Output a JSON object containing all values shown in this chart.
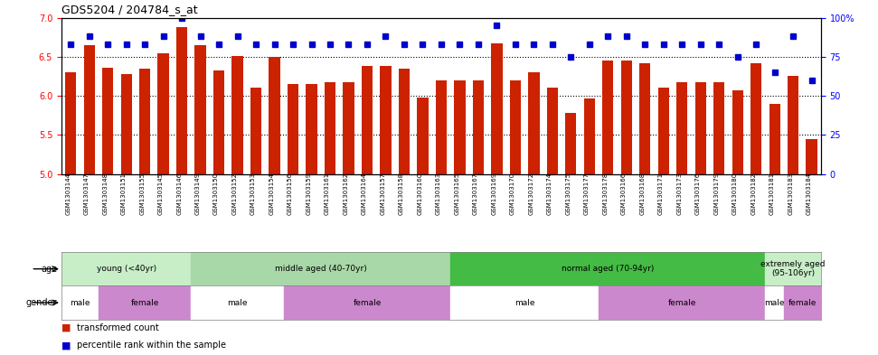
{
  "title": "GDS5204 / 204784_s_at",
  "samples": [
    "GSM1303144",
    "GSM1303147",
    "GSM1303148",
    "GSM1303151",
    "GSM1303155",
    "GSM1303145",
    "GSM1303146",
    "GSM1303149",
    "GSM1303150",
    "GSM1303152",
    "GSM1303153",
    "GSM1303154",
    "GSM1303156",
    "GSM1303159",
    "GSM1303161",
    "GSM1303162",
    "GSM1303164",
    "GSM1303157",
    "GSM1303158",
    "GSM1303160",
    "GSM1303163",
    "GSM1303165",
    "GSM1303167",
    "GSM1303169",
    "GSM1303170",
    "GSM1303172",
    "GSM1303174",
    "GSM1303175",
    "GSM1303177",
    "GSM1303178",
    "GSM1303166",
    "GSM1303168",
    "GSM1303171",
    "GSM1303173",
    "GSM1303176",
    "GSM1303179",
    "GSM1303180",
    "GSM1303182",
    "GSM1303181",
    "GSM1303183",
    "GSM1303184"
  ],
  "bar_values": [
    6.3,
    6.65,
    6.36,
    6.28,
    6.35,
    6.55,
    6.88,
    6.65,
    6.33,
    6.51,
    6.11,
    6.5,
    6.15,
    6.15,
    6.17,
    6.17,
    6.38,
    6.38,
    6.35,
    5.98,
    6.2,
    6.2,
    6.2,
    6.67,
    6.2,
    6.3,
    6.1,
    5.78,
    5.97,
    6.45,
    6.45,
    6.42,
    6.1,
    6.18,
    6.18,
    6.18,
    6.07,
    6.42,
    5.9,
    6.25,
    5.45
  ],
  "blue_values": [
    83,
    88,
    83,
    83,
    83,
    88,
    100,
    88,
    83,
    88,
    83,
    83,
    83,
    83,
    83,
    83,
    83,
    88,
    83,
    83,
    83,
    83,
    83,
    95,
    83,
    83,
    83,
    75,
    83,
    88,
    88,
    83,
    83,
    83,
    83,
    83,
    75,
    83,
    65,
    88,
    60
  ],
  "ylim_left": [
    5.0,
    7.0
  ],
  "ylim_right": [
    0,
    100
  ],
  "yticks_left": [
    5.0,
    5.5,
    6.0,
    6.5,
    7.0
  ],
  "yticks_right": [
    0,
    25,
    50,
    75,
    100
  ],
  "bar_color": "#CC2200",
  "dot_color": "#0000CC",
  "age_groups": [
    {
      "label": "young (<40yr)",
      "start": 0,
      "end": 7,
      "color": "#C8EEC8"
    },
    {
      "label": "middle aged (40-70yr)",
      "start": 7,
      "end": 21,
      "color": "#A8D8A8"
    },
    {
      "label": "normal aged (70-94yr)",
      "start": 21,
      "end": 38,
      "color": "#44BB44"
    },
    {
      "label": "extremely aged\n(95-106yr)",
      "start": 38,
      "end": 41,
      "color": "#C8EEC8"
    }
  ],
  "gender_groups": [
    {
      "label": "male",
      "start": 0,
      "end": 2,
      "color": "#FFFFFF"
    },
    {
      "label": "female",
      "start": 2,
      "end": 7,
      "color": "#DD88DD"
    },
    {
      "label": "male",
      "start": 7,
      "end": 12,
      "color": "#FFFFFF"
    },
    {
      "label": "female",
      "start": 12,
      "end": 21,
      "color": "#DD88DD"
    },
    {
      "label": "male",
      "start": 21,
      "end": 29,
      "color": "#FFFFFF"
    },
    {
      "label": "female",
      "start": 29,
      "end": 38,
      "color": "#DD88DD"
    },
    {
      "label": "male",
      "start": 38,
      "end": 39,
      "color": "#FFFFFF"
    },
    {
      "label": "female",
      "start": 39,
      "end": 41,
      "color": "#DD88DD"
    }
  ],
  "dotted_lines": [
    5.5,
    6.0,
    6.5
  ]
}
